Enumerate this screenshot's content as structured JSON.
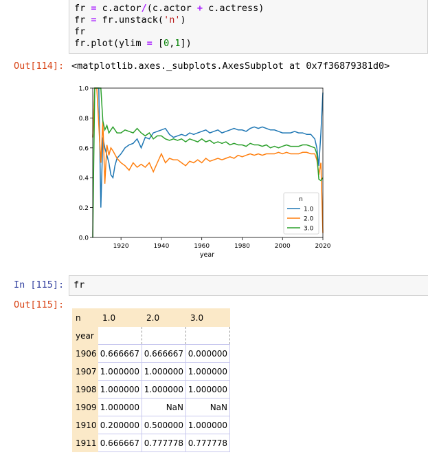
{
  "cell114": {
    "code_lines": [
      [
        {
          "t": "fr ",
          "c": ""
        },
        {
          "t": "=",
          "c": "op"
        },
        {
          "t": " c.actor",
          "c": ""
        },
        {
          "t": "/",
          "c": "op"
        },
        {
          "t": "(c.actor ",
          "c": ""
        },
        {
          "t": "+",
          "c": "op"
        },
        {
          "t": " c.actress)",
          "c": ""
        }
      ],
      [
        {
          "t": "fr ",
          "c": ""
        },
        {
          "t": "=",
          "c": "op"
        },
        {
          "t": " fr.unstack(",
          "c": ""
        },
        {
          "t": "'n'",
          "c": "str"
        },
        {
          "t": ")",
          "c": ""
        }
      ],
      [
        {
          "t": "fr",
          "c": ""
        }
      ],
      [
        {
          "t": "fr.plot(ylim ",
          "c": ""
        },
        {
          "t": "=",
          "c": "op"
        },
        {
          "t": " [",
          "c": ""
        },
        {
          "t": "0",
          "c": "num"
        },
        {
          "t": ",",
          "c": ""
        },
        {
          "t": "1",
          "c": "num"
        },
        {
          "t": "])",
          "c": ""
        }
      ]
    ],
    "out_prompt": "Out[114]:",
    "output_text": "<matplotlib.axes._subplots.AxesSubplot at 0x7f36879381d0>"
  },
  "cell115": {
    "in_prompt": "In [115]:",
    "code": "fr",
    "out_prompt": "Out[115]:"
  },
  "table": {
    "index_name": "n",
    "columns": [
      "1.0",
      "2.0",
      "3.0"
    ],
    "row_index_name": "year",
    "rows": [
      {
        "year": "1906",
        "v": [
          "0.666667",
          "0.666667",
          "0.000000"
        ]
      },
      {
        "year": "1907",
        "v": [
          "1.000000",
          "1.000000",
          "1.000000"
        ]
      },
      {
        "year": "1908",
        "v": [
          "1.000000",
          "1.000000",
          "1.000000"
        ]
      },
      {
        "year": "1909",
        "v": [
          "1.000000",
          "NaN",
          "NaN"
        ]
      },
      {
        "year": "1910",
        "v": [
          "0.200000",
          "0.500000",
          "1.000000"
        ]
      },
      {
        "year": "1911",
        "v": [
          "0.666667",
          "0.777778",
          "0.777778"
        ]
      }
    ]
  },
  "chart_data": {
    "type": "line",
    "xlabel": "year",
    "ylabel": "",
    "xlim": [
      1906,
      2020
    ],
    "ylim": [
      0,
      1
    ],
    "xticks": [
      1920,
      1940,
      1960,
      1980,
      2000,
      2020
    ],
    "yticks": [
      "0.0",
      "0.2",
      "0.4",
      "0.6",
      "0.8",
      "1.0"
    ],
    "legend_title": "n",
    "legend_position": "lower-right",
    "series": [
      {
        "name": "1.0",
        "color": "#1f77b4",
        "points": [
          [
            1906,
            0.67
          ],
          [
            1907,
            1.0
          ],
          [
            1908,
            1.0
          ],
          [
            1909,
            1.0
          ],
          [
            1910,
            0.2
          ],
          [
            1911,
            0.67
          ],
          [
            1912,
            0.6
          ],
          [
            1913,
            0.55
          ],
          [
            1914,
            0.5
          ],
          [
            1915,
            0.42
          ],
          [
            1916,
            0.4
          ],
          [
            1917,
            0.48
          ],
          [
            1918,
            0.53
          ],
          [
            1920,
            0.56
          ],
          [
            1922,
            0.6
          ],
          [
            1924,
            0.62
          ],
          [
            1926,
            0.63
          ],
          [
            1928,
            0.66
          ],
          [
            1930,
            0.6
          ],
          [
            1932,
            0.67
          ],
          [
            1934,
            0.66
          ],
          [
            1936,
            0.7
          ],
          [
            1938,
            0.71
          ],
          [
            1940,
            0.72
          ],
          [
            1942,
            0.73
          ],
          [
            1944,
            0.69
          ],
          [
            1946,
            0.67
          ],
          [
            1948,
            0.68
          ],
          [
            1950,
            0.69
          ],
          [
            1952,
            0.68
          ],
          [
            1954,
            0.7
          ],
          [
            1956,
            0.69
          ],
          [
            1958,
            0.7
          ],
          [
            1960,
            0.71
          ],
          [
            1962,
            0.72
          ],
          [
            1964,
            0.7
          ],
          [
            1966,
            0.71
          ],
          [
            1968,
            0.72
          ],
          [
            1970,
            0.7
          ],
          [
            1972,
            0.71
          ],
          [
            1974,
            0.72
          ],
          [
            1976,
            0.73
          ],
          [
            1978,
            0.72
          ],
          [
            1980,
            0.72
          ],
          [
            1982,
            0.71
          ],
          [
            1984,
            0.73
          ],
          [
            1986,
            0.74
          ],
          [
            1988,
            0.73
          ],
          [
            1990,
            0.74
          ],
          [
            1992,
            0.73
          ],
          [
            1994,
            0.72
          ],
          [
            1996,
            0.72
          ],
          [
            1998,
            0.71
          ],
          [
            2000,
            0.7
          ],
          [
            2002,
            0.7
          ],
          [
            2004,
            0.7
          ],
          [
            2006,
            0.71
          ],
          [
            2008,
            0.7
          ],
          [
            2010,
            0.7
          ],
          [
            2012,
            0.69
          ],
          [
            2014,
            0.69
          ],
          [
            2016,
            0.66
          ],
          [
            2017,
            0.6
          ],
          [
            2018,
            0.48
          ],
          [
            2019,
            0.7
          ],
          [
            2020,
            0.97
          ]
        ]
      },
      {
        "name": "2.0",
        "color": "#ff7f0e",
        "points": [
          [
            1906,
            0.67
          ],
          [
            1907,
            1.0
          ],
          [
            1908,
            1.0
          ],
          [
            1910,
            0.5
          ],
          [
            1911,
            0.78
          ],
          [
            1912,
            0.36
          ],
          [
            1913,
            0.62
          ],
          [
            1914,
            0.55
          ],
          [
            1915,
            0.6
          ],
          [
            1916,
            0.58
          ],
          [
            1918,
            0.53
          ],
          [
            1920,
            0.5
          ],
          [
            1922,
            0.48
          ],
          [
            1924,
            0.45
          ],
          [
            1926,
            0.5
          ],
          [
            1928,
            0.47
          ],
          [
            1930,
            0.49
          ],
          [
            1932,
            0.47
          ],
          [
            1934,
            0.5
          ],
          [
            1936,
            0.44
          ],
          [
            1938,
            0.5
          ],
          [
            1940,
            0.56
          ],
          [
            1942,
            0.5
          ],
          [
            1944,
            0.53
          ],
          [
            1946,
            0.52
          ],
          [
            1948,
            0.52
          ],
          [
            1950,
            0.5
          ],
          [
            1952,
            0.48
          ],
          [
            1954,
            0.51
          ],
          [
            1956,
            0.5
          ],
          [
            1958,
            0.52
          ],
          [
            1960,
            0.5
          ],
          [
            1962,
            0.53
          ],
          [
            1964,
            0.51
          ],
          [
            1966,
            0.52
          ],
          [
            1968,
            0.53
          ],
          [
            1970,
            0.52
          ],
          [
            1972,
            0.53
          ],
          [
            1974,
            0.54
          ],
          [
            1976,
            0.53
          ],
          [
            1978,
            0.55
          ],
          [
            1980,
            0.54
          ],
          [
            1982,
            0.55
          ],
          [
            1984,
            0.56
          ],
          [
            1986,
            0.55
          ],
          [
            1988,
            0.56
          ],
          [
            1990,
            0.55
          ],
          [
            1992,
            0.56
          ],
          [
            1994,
            0.56
          ],
          [
            1996,
            0.56
          ],
          [
            1998,
            0.57
          ],
          [
            2000,
            0.56
          ],
          [
            2002,
            0.57
          ],
          [
            2004,
            0.56
          ],
          [
            2006,
            0.56
          ],
          [
            2008,
            0.56
          ],
          [
            2010,
            0.57
          ],
          [
            2012,
            0.57
          ],
          [
            2014,
            0.56
          ],
          [
            2016,
            0.56
          ],
          [
            2017,
            0.52
          ],
          [
            2018,
            0.42
          ],
          [
            2019,
            0.5
          ],
          [
            2020,
            0.03
          ]
        ]
      },
      {
        "name": "3.0",
        "color": "#2ca02c",
        "points": [
          [
            1906,
            0.0
          ],
          [
            1907,
            1.0
          ],
          [
            1908,
            1.0
          ],
          [
            1910,
            1.0
          ],
          [
            1911,
            0.78
          ],
          [
            1912,
            0.72
          ],
          [
            1913,
            0.75
          ],
          [
            1914,
            0.7
          ],
          [
            1915,
            0.72
          ],
          [
            1916,
            0.74
          ],
          [
            1918,
            0.7
          ],
          [
            1920,
            0.7
          ],
          [
            1922,
            0.72
          ],
          [
            1924,
            0.71
          ],
          [
            1926,
            0.7
          ],
          [
            1928,
            0.73
          ],
          [
            1930,
            0.7
          ],
          [
            1932,
            0.68
          ],
          [
            1934,
            0.7
          ],
          [
            1936,
            0.66
          ],
          [
            1938,
            0.68
          ],
          [
            1940,
            0.68
          ],
          [
            1942,
            0.66
          ],
          [
            1944,
            0.65
          ],
          [
            1946,
            0.66
          ],
          [
            1948,
            0.65
          ],
          [
            1950,
            0.66
          ],
          [
            1952,
            0.64
          ],
          [
            1954,
            0.66
          ],
          [
            1956,
            0.65
          ],
          [
            1958,
            0.64
          ],
          [
            1960,
            0.66
          ],
          [
            1962,
            0.64
          ],
          [
            1964,
            0.65
          ],
          [
            1966,
            0.63
          ],
          [
            1968,
            0.64
          ],
          [
            1970,
            0.63
          ],
          [
            1972,
            0.64
          ],
          [
            1974,
            0.62
          ],
          [
            1976,
            0.63
          ],
          [
            1978,
            0.62
          ],
          [
            1980,
            0.62
          ],
          [
            1982,
            0.61
          ],
          [
            1984,
            0.63
          ],
          [
            1986,
            0.62
          ],
          [
            1988,
            0.62
          ],
          [
            1990,
            0.61
          ],
          [
            1992,
            0.62
          ],
          [
            1994,
            0.6
          ],
          [
            1996,
            0.61
          ],
          [
            1998,
            0.6
          ],
          [
            2000,
            0.61
          ],
          [
            2002,
            0.62
          ],
          [
            2004,
            0.61
          ],
          [
            2006,
            0.61
          ],
          [
            2008,
            0.61
          ],
          [
            2010,
            0.62
          ],
          [
            2012,
            0.62
          ],
          [
            2014,
            0.61
          ],
          [
            2016,
            0.6
          ],
          [
            2017,
            0.56
          ],
          [
            2018,
            0.39
          ],
          [
            2019,
            0.38
          ],
          [
            2020,
            0.4
          ]
        ]
      }
    ]
  }
}
